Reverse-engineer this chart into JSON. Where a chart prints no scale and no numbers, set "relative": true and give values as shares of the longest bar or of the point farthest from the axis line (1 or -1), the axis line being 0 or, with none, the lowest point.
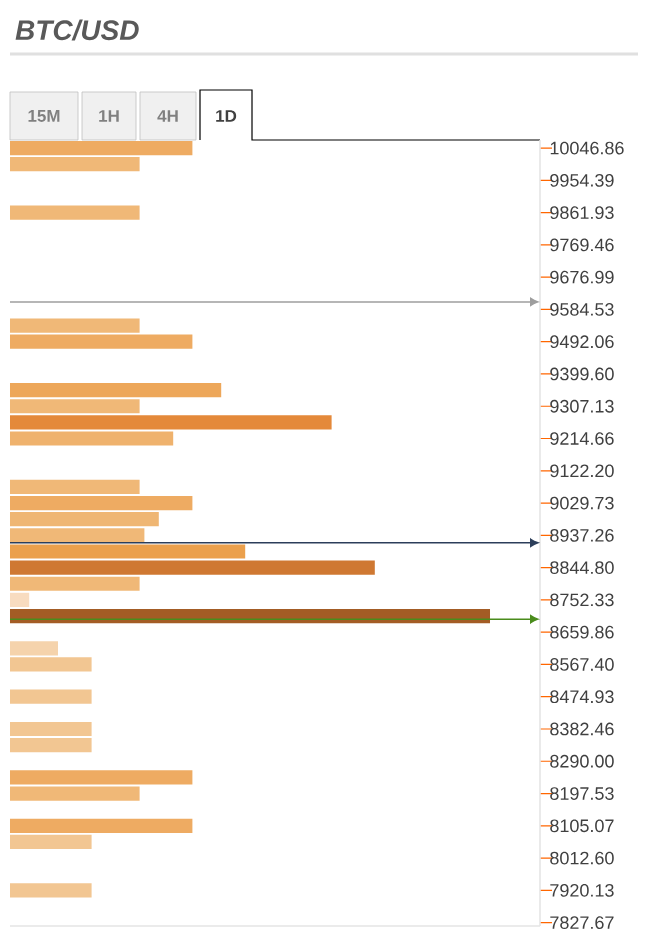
{
  "chart_data": {
    "type": "bar",
    "orientation": "horizontal",
    "relative": true,
    "title": "BTC/USD",
    "annotations": [
      "15M",
      "1H",
      "4H",
      "1D"
    ],
    "x": [
      10046.86,
      10000.62,
      9861.93,
      9538.3,
      9492.06,
      9353.37,
      9307.13,
      9260.9,
      9214.66,
      9075.97,
      9029.73,
      8983.5,
      8937.26,
      8891.03,
      8844.8,
      8798.57,
      8752.33,
      8706.1,
      8613.63,
      8567.4,
      8474.93,
      8382.46,
      8336.23,
      8243.77,
      8197.53,
      8105.07,
      8058.84,
      7920.13
    ],
    "values": [
      0.38,
      0.27,
      0.27,
      0.27,
      0.38,
      0.44,
      0.27,
      0.67,
      0.34,
      0.27,
      0.38,
      0.31,
      0.28,
      0.49,
      0.76,
      0.27,
      0.04,
      1,
      0.1,
      0.17,
      0.17,
      0.17,
      0.17,
      0.38,
      0.27,
      0.38,
      0.17,
      0.17
    ],
    "colors": [
      "#eeab62",
      "#f0b877",
      "#f0b877",
      "#f0b877",
      "#eeab62",
      "#eda75a",
      "#f0b877",
      "#e4893a",
      "#efb26d",
      "#f0b877",
      "#eeab62",
      "#efb673",
      "#f0b877",
      "#eba04c",
      "#cf7832",
      "#f0b877",
      "#f8dcc0",
      "#a35c25",
      "#f5d3ac",
      "#f2c692",
      "#f2c692",
      "#f2c692",
      "#f2c692",
      "#eeab62",
      "#f0b877",
      "#eeab62",
      "#f2c692",
      "#f2c692"
    ],
    "ylim": [
      7818,
      10070
    ],
    "yticks": [
      10046.86,
      9954.39,
      9861.93,
      9769.46,
      9676.99,
      9584.53,
      9492.06,
      {
        "value": 9399.6,
        "label": "9399.60"
      },
      9307.13,
      9214.66,
      {
        "value": 9122.2,
        "label": "9122.20"
      },
      9029.73,
      8937.26,
      {
        "value": 8844.8,
        "label": "8844.80"
      },
      8752.33,
      8659.86,
      {
        "value": 8567.4,
        "label": "8567.40"
      },
      8474.93,
      8382.46,
      {
        "value": 8290,
        "label": "8290.00"
      },
      8197.53,
      8105.07,
      {
        "value": 8012.6,
        "label": "8012.60"
      },
      7920.13,
      7827.67
    ],
    "ref_lines": [
      {
        "axis": "y",
        "value": 9606,
        "color": "#9e9e9e"
      },
      {
        "axis": "y",
        "value": 8916,
        "color": "#2c3e5a"
      },
      {
        "axis": "y",
        "value": 8697,
        "color": "#4a8c1c"
      }
    ]
  }
}
